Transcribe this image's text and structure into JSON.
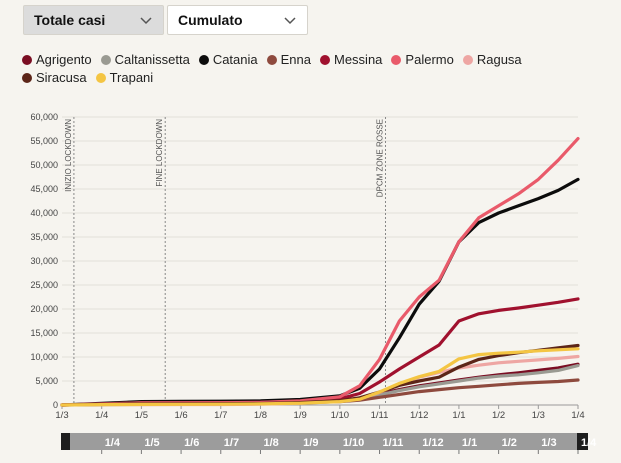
{
  "controls": {
    "metric_label": "Totale casi",
    "mode_label": "Cumulato"
  },
  "colors": {
    "Agrigento": "#7a0d22",
    "Caltanissetta": "#9a9a92",
    "Catania": "#0c0c0c",
    "Enna": "#8e4a3e",
    "Messina": "#a0112e",
    "Palermo": "#e95a6a",
    "Ragusa": "#eea6a3",
    "Siracusa": "#5c2518",
    "Trapani": "#f4c543",
    "grid": "#e3e0da",
    "annotation": "#888888",
    "navigator_bg": "#9c9c9c",
    "navigator_handle": "#1e1e1e"
  },
  "chart_data": {
    "type": "line",
    "ylim": [
      0,
      60000
    ],
    "y_ticks": [
      "0",
      "5,000",
      "10,000",
      "15,000",
      "20,000",
      "25,000",
      "30,000",
      "35,000",
      "40,000",
      "45,000",
      "50,000",
      "55,000",
      "60,000"
    ],
    "x_ticks": [
      "1/3",
      "1/4",
      "1/5",
      "1/6",
      "1/7",
      "1/8",
      "1/9",
      "1/10",
      "1/11",
      "1/12",
      "1/1",
      "1/2",
      "1/3",
      "1/4"
    ],
    "navigator_ticks": [
      "1/4",
      "1/5",
      "1/6",
      "1/7",
      "1/8",
      "1/9",
      "1/10",
      "1/11",
      "1/12",
      "1/1",
      "1/2",
      "1/3",
      "1/4"
    ],
    "annotations": [
      {
        "label": "INIZIO LOCKDOWN",
        "x_month": 0.3
      },
      {
        "label": "FINE LOCKDOWN",
        "x_month": 2.6
      },
      {
        "label": "DPCM ZONE ROSSE",
        "x_month": 8.15
      }
    ],
    "x_months": [
      0,
      1,
      2,
      3,
      4,
      5,
      6,
      7,
      7.5,
      8,
      8.5,
      9,
      9.5,
      10,
      10.5,
      11,
      11.5,
      12,
      12.5,
      13
    ],
    "series": [
      {
        "name": "Agrigento",
        "values": [
          0,
          130,
          170,
          180,
          200,
          250,
          450,
          900,
          1400,
          2300,
          3200,
          4000,
          4600,
          5200,
          5800,
          6300,
          6700,
          7200,
          7700,
          8500
        ]
      },
      {
        "name": "Caltanissetta",
        "values": [
          0,
          90,
          140,
          160,
          180,
          230,
          420,
          800,
          1300,
          2100,
          3000,
          3800,
          4400,
          5000,
          5600,
          6000,
          6300,
          6700,
          7200,
          8200
        ]
      },
      {
        "name": "Catania",
        "values": [
          0,
          350,
          700,
          760,
          790,
          850,
          1150,
          1900,
          3500,
          7500,
          14000,
          21000,
          25800,
          34000,
          38000,
          40000,
          41500,
          43000,
          44700,
          47000
        ]
      },
      {
        "name": "Enna",
        "values": [
          0,
          110,
          330,
          380,
          400,
          430,
          500,
          700,
          1000,
          1600,
          2200,
          2800,
          3200,
          3600,
          3900,
          4200,
          4500,
          4700,
          4900,
          5200
        ]
      },
      {
        "name": "Messina",
        "values": [
          0,
          220,
          460,
          480,
          500,
          560,
          800,
          1300,
          2400,
          4800,
          7500,
          10000,
          12500,
          17500,
          19000,
          19700,
          20200,
          20800,
          21400,
          22100
        ]
      },
      {
        "name": "Palermo",
        "values": [
          0,
          200,
          430,
          450,
          480,
          540,
          850,
          1700,
          4000,
          9500,
          17500,
          22500,
          26000,
          34000,
          39000,
          41500,
          44000,
          47000,
          51000,
          55500
        ]
      },
      {
        "name": "Ragusa",
        "values": [
          0,
          55,
          85,
          95,
          110,
          170,
          360,
          750,
          1300,
          2600,
          4300,
          5800,
          6800,
          7700,
          8300,
          8800,
          9100,
          9400,
          9700,
          10100
        ]
      },
      {
        "name": "Siracusa",
        "values": [
          0,
          130,
          240,
          260,
          280,
          320,
          500,
          900,
          1500,
          2700,
          4100,
          5000,
          5800,
          7900,
          9500,
          10300,
          10900,
          11400,
          11900,
          12400
        ]
      },
      {
        "name": "Trapani",
        "values": [
          0,
          75,
          130,
          150,
          170,
          220,
          380,
          700,
          1200,
          2700,
          4500,
          5900,
          7000,
          9600,
          10500,
          10800,
          11000,
          11300,
          11500,
          11700
        ]
      }
    ]
  }
}
